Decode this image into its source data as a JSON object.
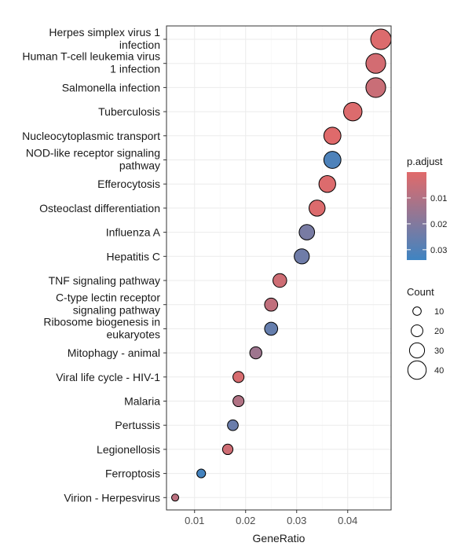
{
  "chart_data": {
    "type": "scatter",
    "xlabel": "GeneRatio",
    "ylabel": "",
    "xlim": [
      0.0045,
      0.0485
    ],
    "x_ticks": [
      "0.01",
      "0.02",
      "0.03",
      "0.04"
    ],
    "x_tick_values": [
      0.01,
      0.02,
      0.03,
      0.04
    ],
    "grid": true,
    "legend_placement": "right",
    "colors": {
      "low_padj": "#E16A6A",
      "high_padj": "#3F84C2",
      "point_stroke": "#000000",
      "panel_border": "#333333",
      "grid": "#ebebeb"
    },
    "points": [
      {
        "term": [
          "Herpes simplex virus 1",
          "infection"
        ],
        "gene_ratio": 0.0465,
        "count": 46,
        "p_adjust": 0.001
      },
      {
        "term": [
          "Human T-cell leukemia virus",
          "1 infection"
        ],
        "gene_ratio": 0.0455,
        "count": 44,
        "p_adjust": 0.003
      },
      {
        "term": [
          "Salmonella infection"
        ],
        "gene_ratio": 0.0455,
        "count": 44,
        "p_adjust": 0.005
      },
      {
        "term": [
          "Tuberculosis"
        ],
        "gene_ratio": 0.041,
        "count": 40,
        "p_adjust": 0.001
      },
      {
        "term": [
          "Nucleocytoplasmic transport"
        ],
        "gene_ratio": 0.037,
        "count": 36,
        "p_adjust": 0.0005
      },
      {
        "term": [
          "NOD-like receptor signaling",
          "pathway"
        ],
        "gene_ratio": 0.037,
        "count": 36,
        "p_adjust": 0.031
      },
      {
        "term": [
          "Efferocytosis"
        ],
        "gene_ratio": 0.036,
        "count": 35,
        "p_adjust": 0.001
      },
      {
        "term": [
          "Osteoclast differentiation"
        ],
        "gene_ratio": 0.034,
        "count": 33,
        "p_adjust": 0.001
      },
      {
        "term": [
          "Influenza A"
        ],
        "gene_ratio": 0.032,
        "count": 31,
        "p_adjust": 0.022
      },
      {
        "term": [
          "Hepatitis C"
        ],
        "gene_ratio": 0.031,
        "count": 30,
        "p_adjust": 0.024
      },
      {
        "term": [
          "TNF signaling pathway"
        ],
        "gene_ratio": 0.0267,
        "count": 26,
        "p_adjust": 0.004
      },
      {
        "term": [
          "C-type lectin receptor",
          "signaling pathway"
        ],
        "gene_ratio": 0.025,
        "count": 24,
        "p_adjust": 0.007
      },
      {
        "term": [
          "Ribosome biogenesis in",
          "eukaryotes"
        ],
        "gene_ratio": 0.025,
        "count": 24,
        "p_adjust": 0.026
      },
      {
        "term": [
          "Mitophagy - animal"
        ],
        "gene_ratio": 0.022,
        "count": 21,
        "p_adjust": 0.014
      },
      {
        "term": [
          "Viral life cycle - HIV-1"
        ],
        "gene_ratio": 0.0186,
        "count": 18,
        "p_adjust": 0.002
      },
      {
        "term": [
          "Malaria"
        ],
        "gene_ratio": 0.0186,
        "count": 18,
        "p_adjust": 0.01
      },
      {
        "term": [
          "Pertussis"
        ],
        "gene_ratio": 0.0175,
        "count": 17,
        "p_adjust": 0.025
      },
      {
        "term": [
          "Legionellosis"
        ],
        "gene_ratio": 0.0165,
        "count": 16,
        "p_adjust": 0.004
      },
      {
        "term": [
          "Ferroptosis"
        ],
        "gene_ratio": 0.0113,
        "count": 11,
        "p_adjust": 0.033
      },
      {
        "term": [
          "Virion - Herpesvirus"
        ],
        "gene_ratio": 0.0062,
        "count": 6,
        "p_adjust": 0.008
      }
    ],
    "color_legend": {
      "title": "p.adjust",
      "range": [
        0.0,
        0.034
      ],
      "breaks": [
        0.01,
        0.02,
        0.03
      ],
      "labels": [
        "0.01",
        "0.02",
        "0.03"
      ]
    },
    "size_legend": {
      "title": "Count",
      "values": [
        10,
        20,
        30,
        40
      ],
      "labels": [
        "10",
        "20",
        "30",
        "40"
      ]
    }
  }
}
